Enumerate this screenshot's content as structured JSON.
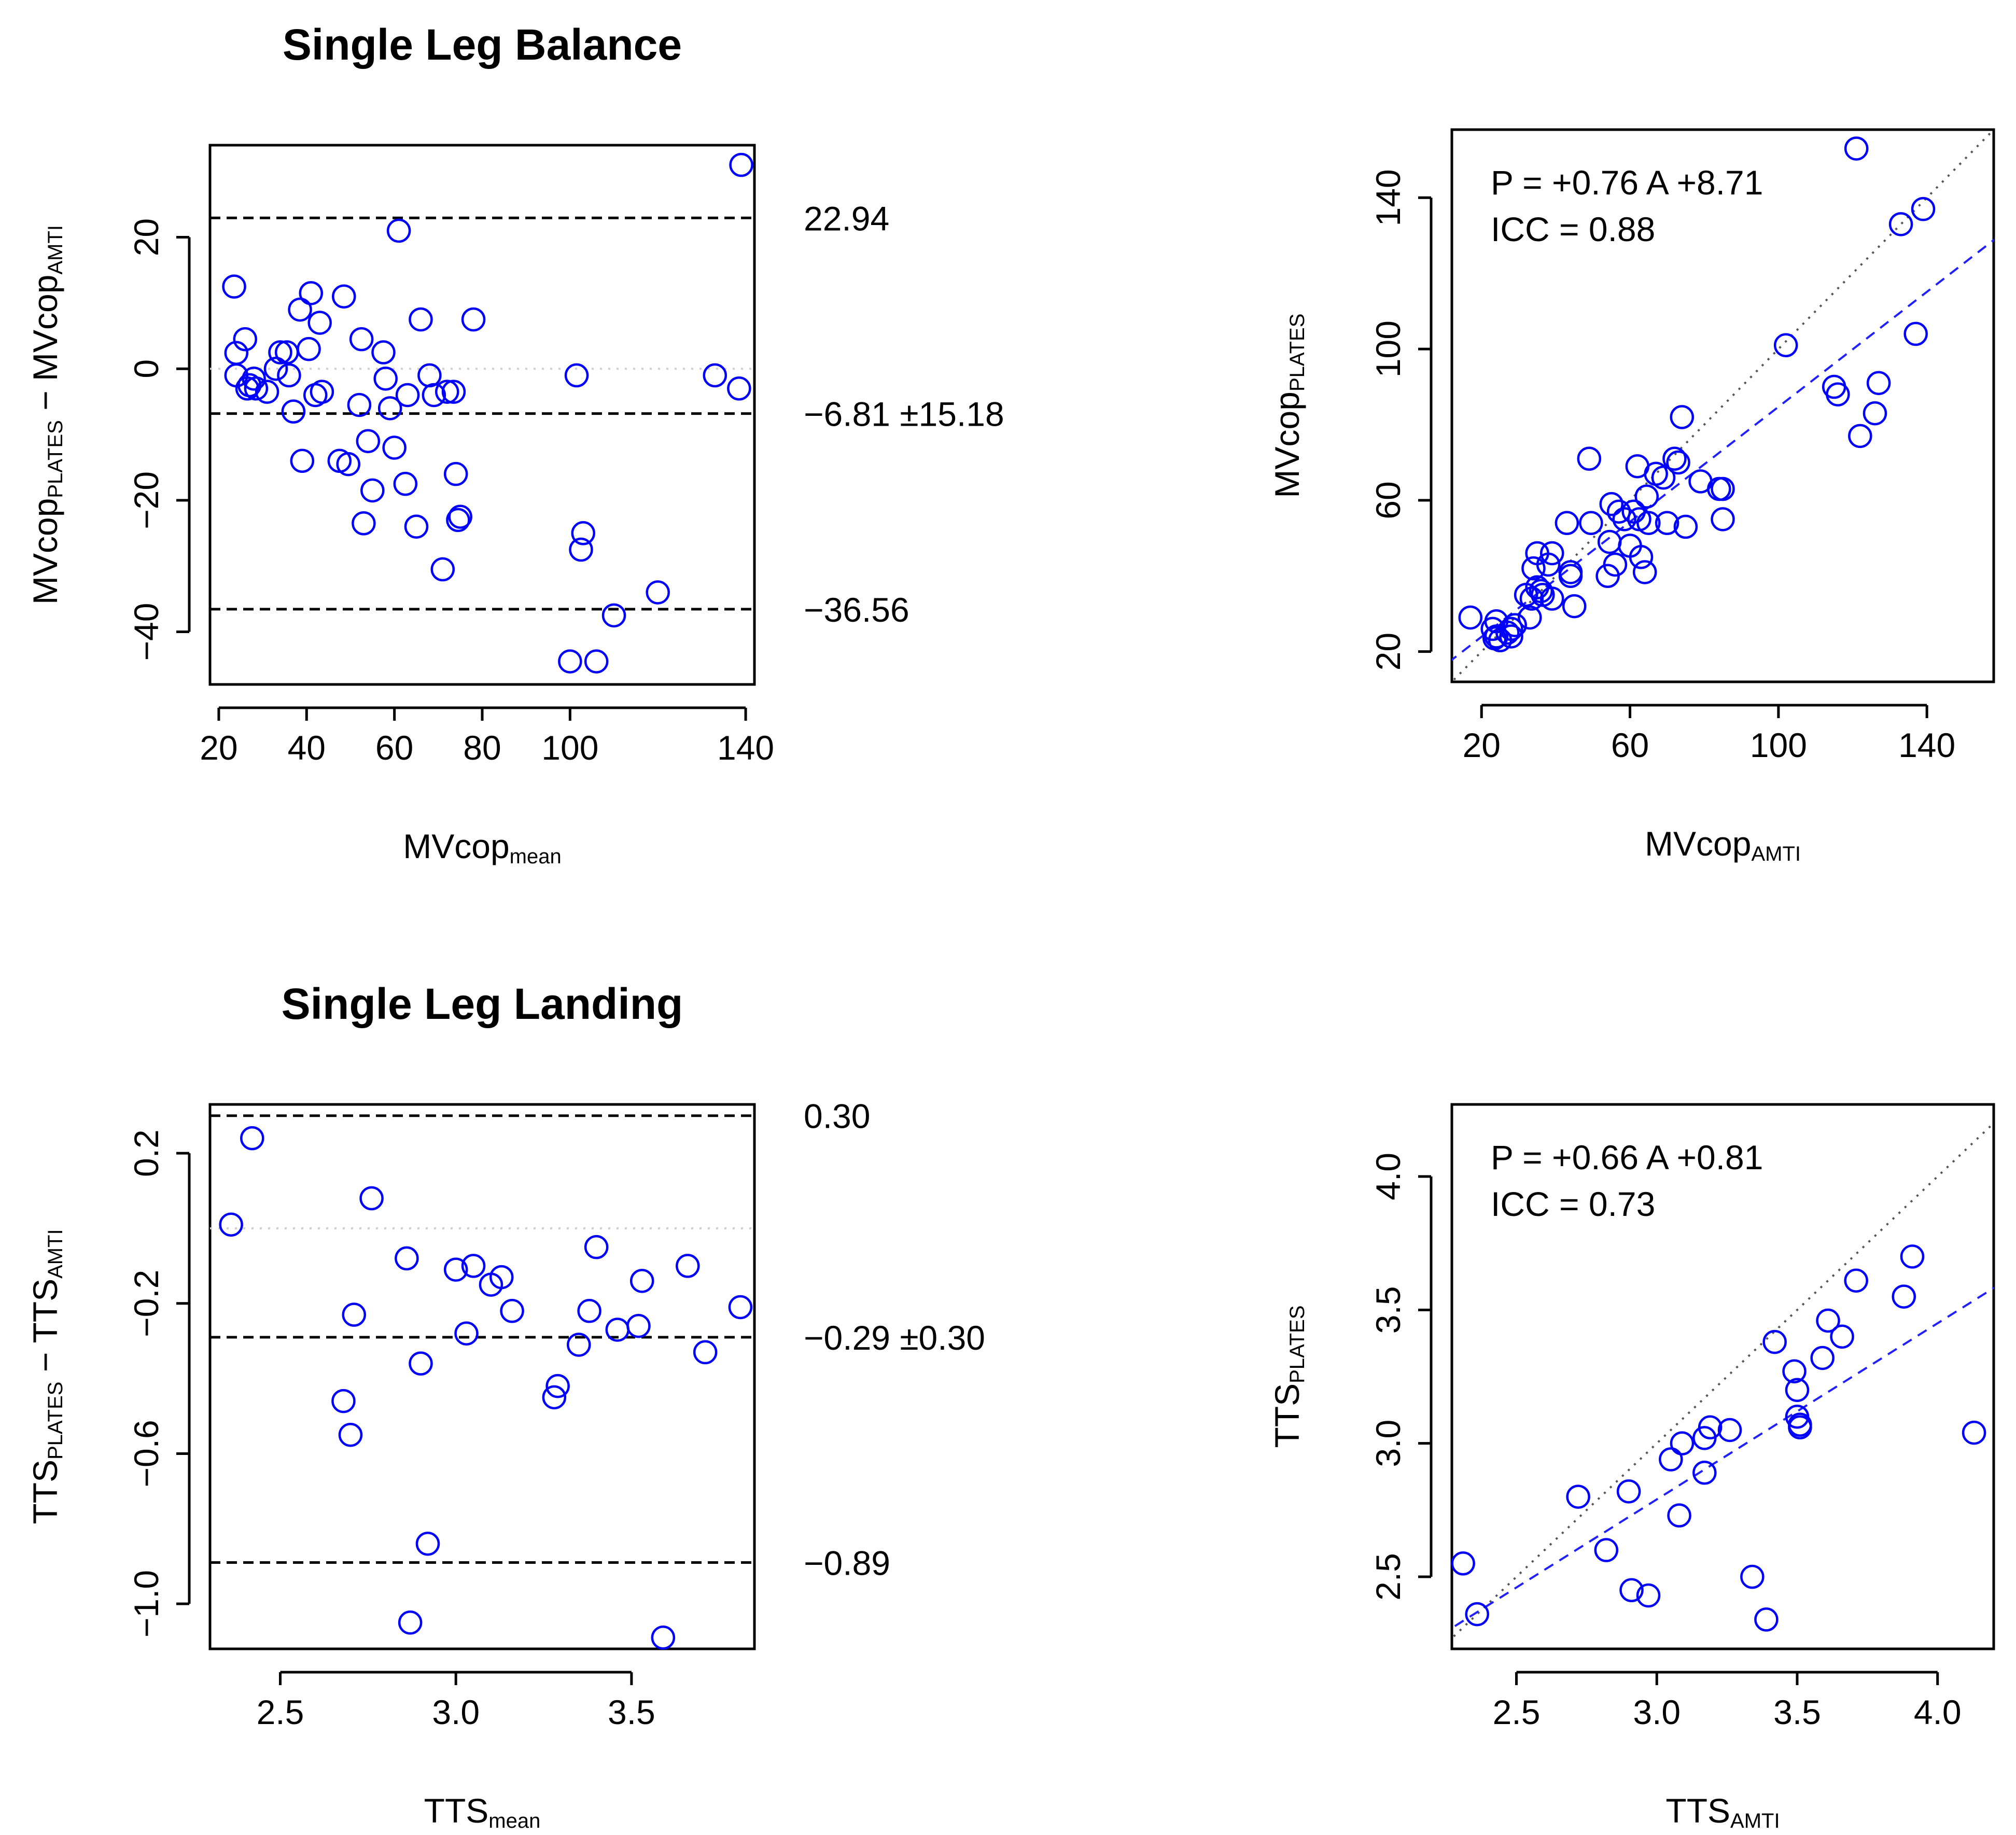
{
  "colors": {
    "points": "#0000ff",
    "fit_line": "#2020ff",
    "reference": "#000000",
    "zero_line": "#cfcfcf"
  },
  "chart_data": [
    {
      "id": "ba1",
      "type": "scatter",
      "title": "Single Leg Balance",
      "xlabel": {
        "main": "MVcop",
        "sub": "mean"
      },
      "ylabel": {
        "main1": "MVcop",
        "sub1": "PLATES",
        "mid": " − ",
        "main2": "MVcop",
        "sub2": "AMTI"
      },
      "xlim": [
        18,
        142
      ],
      "ylim": [
        -48,
        34
      ],
      "xticks": [
        20,
        40,
        60,
        80,
        100,
        140
      ],
      "yticks": [
        -40,
        -20,
        0,
        20
      ],
      "zero_line": 0,
      "reference_lines": [
        {
          "y": 22.94,
          "label": "22.94"
        },
        {
          "y": -6.81,
          "label": "−6.81 ±15.18"
        },
        {
          "y": -36.56,
          "label": "−36.56"
        }
      ],
      "points": [
        [
          23.5,
          12.5
        ],
        [
          24,
          2.4
        ],
        [
          24,
          -1
        ],
        [
          26,
          4.5
        ],
        [
          26.5,
          -3
        ],
        [
          27,
          -2.5
        ],
        [
          28,
          -1.5
        ],
        [
          28.5,
          -3
        ],
        [
          31,
          -3.5
        ],
        [
          33,
          0
        ],
        [
          34,
          2.5
        ],
        [
          35.5,
          2.5
        ],
        [
          36,
          -1
        ],
        [
          37,
          -6.5
        ],
        [
          38.5,
          9
        ],
        [
          39,
          -14
        ],
        [
          40.5,
          3
        ],
        [
          41,
          11.5
        ],
        [
          42,
          -4
        ],
        [
          43,
          7
        ],
        [
          43.5,
          -3.5
        ],
        [
          47.5,
          -14
        ],
        [
          48.5,
          11
        ],
        [
          49.5,
          -14.5
        ],
        [
          52,
          -5.5
        ],
        [
          52.5,
          4.5
        ],
        [
          53,
          -23.5
        ],
        [
          54,
          -11
        ],
        [
          55,
          -18.5
        ],
        [
          57.5,
          2.5
        ],
        [
          58,
          -1.5
        ],
        [
          59,
          -6
        ],
        [
          60,
          -12
        ],
        [
          61,
          21
        ],
        [
          62.5,
          -17.5
        ],
        [
          63,
          -4
        ],
        [
          65,
          -24
        ],
        [
          66,
          7.5
        ],
        [
          68,
          -1
        ],
        [
          69,
          -4
        ],
        [
          71,
          -30.5
        ],
        [
          72,
          -3.5
        ],
        [
          73.5,
          -3.5
        ],
        [
          74,
          -16
        ],
        [
          74.5,
          -23
        ],
        [
          75,
          -22.5
        ],
        [
          78,
          7.5
        ],
        [
          100,
          -44.5
        ],
        [
          101.5,
          -1
        ],
        [
          102.5,
          -27.5
        ],
        [
          103,
          -25
        ],
        [
          106,
          -44.5
        ],
        [
          110,
          -37.5
        ],
        [
          120,
          -34
        ],
        [
          133,
          -1
        ],
        [
          139,
          31
        ],
        [
          138.5,
          -3
        ]
      ]
    },
    {
      "id": "sc1",
      "type": "scatter",
      "xlabel": {
        "main": "MVcop",
        "sub": "AMTI"
      },
      "ylabel": {
        "main": "MVcop",
        "sub": "PLATES"
      },
      "xlim": [
        12,
        158
      ],
      "ylim": [
        12,
        158
      ],
      "xticks": [
        20,
        60,
        100,
        140
      ],
      "yticks": [
        20,
        60,
        100,
        140
      ],
      "identity_line": true,
      "fit": {
        "slope": 0.76,
        "intercept": 8.71
      },
      "annotations": [
        "P = +0.76 A +8.71",
        "ICC = 0.88"
      ],
      "points": [
        [
          17,
          29
        ],
        [
          23,
          26
        ],
        [
          23.5,
          23.5
        ],
        [
          24,
          28
        ],
        [
          24,
          24
        ],
        [
          25,
          23
        ],
        [
          27,
          25
        ],
        [
          28,
          26
        ],
        [
          28,
          24
        ],
        [
          29,
          27
        ],
        [
          32,
          35
        ],
        [
          33,
          29
        ],
        [
          33.5,
          34
        ],
        [
          34,
          42
        ],
        [
          35,
          46
        ],
        [
          35,
          37
        ],
        [
          36,
          36
        ],
        [
          36.5,
          35
        ],
        [
          38,
          43
        ],
        [
          39,
          46
        ],
        [
          39,
          34
        ],
        [
          43,
          54
        ],
        [
          44,
          41
        ],
        [
          44,
          40
        ],
        [
          45,
          32
        ],
        [
          49,
          71
        ],
        [
          49.5,
          54
        ],
        [
          54,
          40
        ],
        [
          54.5,
          49
        ],
        [
          55,
          59
        ],
        [
          56,
          43
        ],
        [
          57,
          57
        ],
        [
          58.5,
          55
        ],
        [
          60,
          48
        ],
        [
          61,
          57
        ],
        [
          62,
          69
        ],
        [
          62.5,
          55
        ],
        [
          63,
          45
        ],
        [
          64,
          41
        ],
        [
          64.5,
          61
        ],
        [
          65,
          54
        ],
        [
          67,
          67
        ],
        [
          69,
          66
        ],
        [
          70,
          54
        ],
        [
          72,
          71
        ],
        [
          73,
          70
        ],
        [
          74,
          82
        ],
        [
          75,
          53
        ],
        [
          79,
          65
        ],
        [
          84,
          63
        ],
        [
          85,
          55
        ],
        [
          85,
          63
        ],
        [
          102,
          101
        ],
        [
          115,
          90
        ],
        [
          116,
          88
        ],
        [
          122,
          77
        ],
        [
          121,
          153
        ],
        [
          126,
          83
        ],
        [
          127,
          91
        ],
        [
          133,
          133
        ],
        [
          137,
          104
        ],
        [
          139,
          137
        ]
      ]
    },
    {
      "id": "ba2",
      "type": "scatter",
      "title": "Single Leg Landing",
      "xlabel": {
        "main": "TTS",
        "sub": "mean"
      },
      "ylabel": {
        "main1": "TTS",
        "sub1": "PLATES",
        "mid": " − ",
        "main2": "TTS",
        "sub2": "AMTI"
      },
      "xlim": [
        2.3,
        3.85
      ],
      "ylim": [
        -1.12,
        0.33
      ],
      "xticks": [
        2.5,
        3.0,
        3.5
      ],
      "yticks": [
        -1.0,
        -0.6,
        -0.2,
        0.2
      ],
      "tick_labels": {
        "x": [
          "2.5",
          "3.0",
          "3.5"
        ],
        "y": [
          "−1.0",
          "−0.6",
          "−0.2",
          "0.2"
        ]
      },
      "zero_line": 0,
      "reference_lines": [
        {
          "y": 0.3,
          "label": "0.30"
        },
        {
          "y": -0.29,
          "label": "−0.29 ±0.30"
        },
        {
          "y": -0.89,
          "label": "−0.89"
        }
      ],
      "points": [
        [
          2.36,
          0.01
        ],
        [
          2.42,
          0.24
        ],
        [
          2.68,
          -0.46
        ],
        [
          2.7,
          -0.55
        ],
        [
          2.71,
          -0.23
        ],
        [
          2.76,
          0.08
        ],
        [
          2.86,
          -0.08
        ],
        [
          2.87,
          -1.05
        ],
        [
          2.9,
          -0.36
        ],
        [
          2.92,
          -0.84
        ],
        [
          3.0,
          -0.11
        ],
        [
          3.03,
          -0.28
        ],
        [
          3.05,
          -0.1
        ],
        [
          3.1,
          -0.15
        ],
        [
          3.13,
          -0.13
        ],
        [
          3.16,
          -0.22
        ],
        [
          3.28,
          -0.45
        ],
        [
          3.29,
          -0.42
        ],
        [
          3.35,
          -0.31
        ],
        [
          3.38,
          -0.22
        ],
        [
          3.4,
          -0.05
        ],
        [
          3.46,
          -0.27
        ],
        [
          3.52,
          -0.26
        ],
        [
          3.53,
          -0.14
        ],
        [
          3.59,
          -1.09
        ],
        [
          3.66,
          -0.1
        ],
        [
          3.71,
          -0.33
        ],
        [
          3.81,
          -0.21
        ]
      ]
    },
    {
      "id": "sc2",
      "type": "scatter",
      "xlabel": {
        "main": "TTS",
        "sub": "AMTI"
      },
      "ylabel": {
        "main": "TTS",
        "sub": "PLATES"
      },
      "xlim": [
        2.27,
        4.2
      ],
      "ylim": [
        2.23,
        4.27
      ],
      "xticks": [
        2.5,
        3.0,
        3.5,
        4.0
      ],
      "yticks": [
        2.5,
        3.0,
        3.5,
        4.0
      ],
      "tick_labels": {
        "x": [
          "2.5",
          "3.0",
          "3.5",
          "4.0"
        ],
        "y": [
          "2.5",
          "3.0",
          "3.5",
          "4.0"
        ]
      },
      "identity_line": true,
      "fit": {
        "slope": 0.66,
        "intercept": 0.81
      },
      "annotations": [
        "P = +0.66 A +0.81",
        "ICC = 0.73"
      ],
      "points": [
        [
          2.31,
          2.55
        ],
        [
          2.36,
          2.36
        ],
        [
          2.72,
          2.8
        ],
        [
          2.82,
          2.6
        ],
        [
          2.9,
          2.82
        ],
        [
          2.91,
          2.45
        ],
        [
          2.97,
          2.43
        ],
        [
          3.05,
          2.94
        ],
        [
          3.08,
          2.73
        ],
        [
          3.09,
          3.0
        ],
        [
          3.17,
          2.89
        ],
        [
          3.17,
          3.02
        ],
        [
          3.19,
          3.06
        ],
        [
          3.26,
          3.05
        ],
        [
          3.34,
          2.5
        ],
        [
          3.39,
          2.34
        ],
        [
          3.42,
          3.38
        ],
        [
          3.49,
          3.27
        ],
        [
          3.5,
          3.2
        ],
        [
          3.5,
          3.1
        ],
        [
          3.51,
          3.07
        ],
        [
          3.51,
          3.06
        ],
        [
          3.59,
          3.32
        ],
        [
          3.61,
          3.46
        ],
        [
          3.66,
          3.4
        ],
        [
          3.71,
          3.61
        ],
        [
          3.88,
          3.55
        ],
        [
          3.91,
          3.7
        ],
        [
          4.13,
          3.04
        ]
      ]
    }
  ]
}
